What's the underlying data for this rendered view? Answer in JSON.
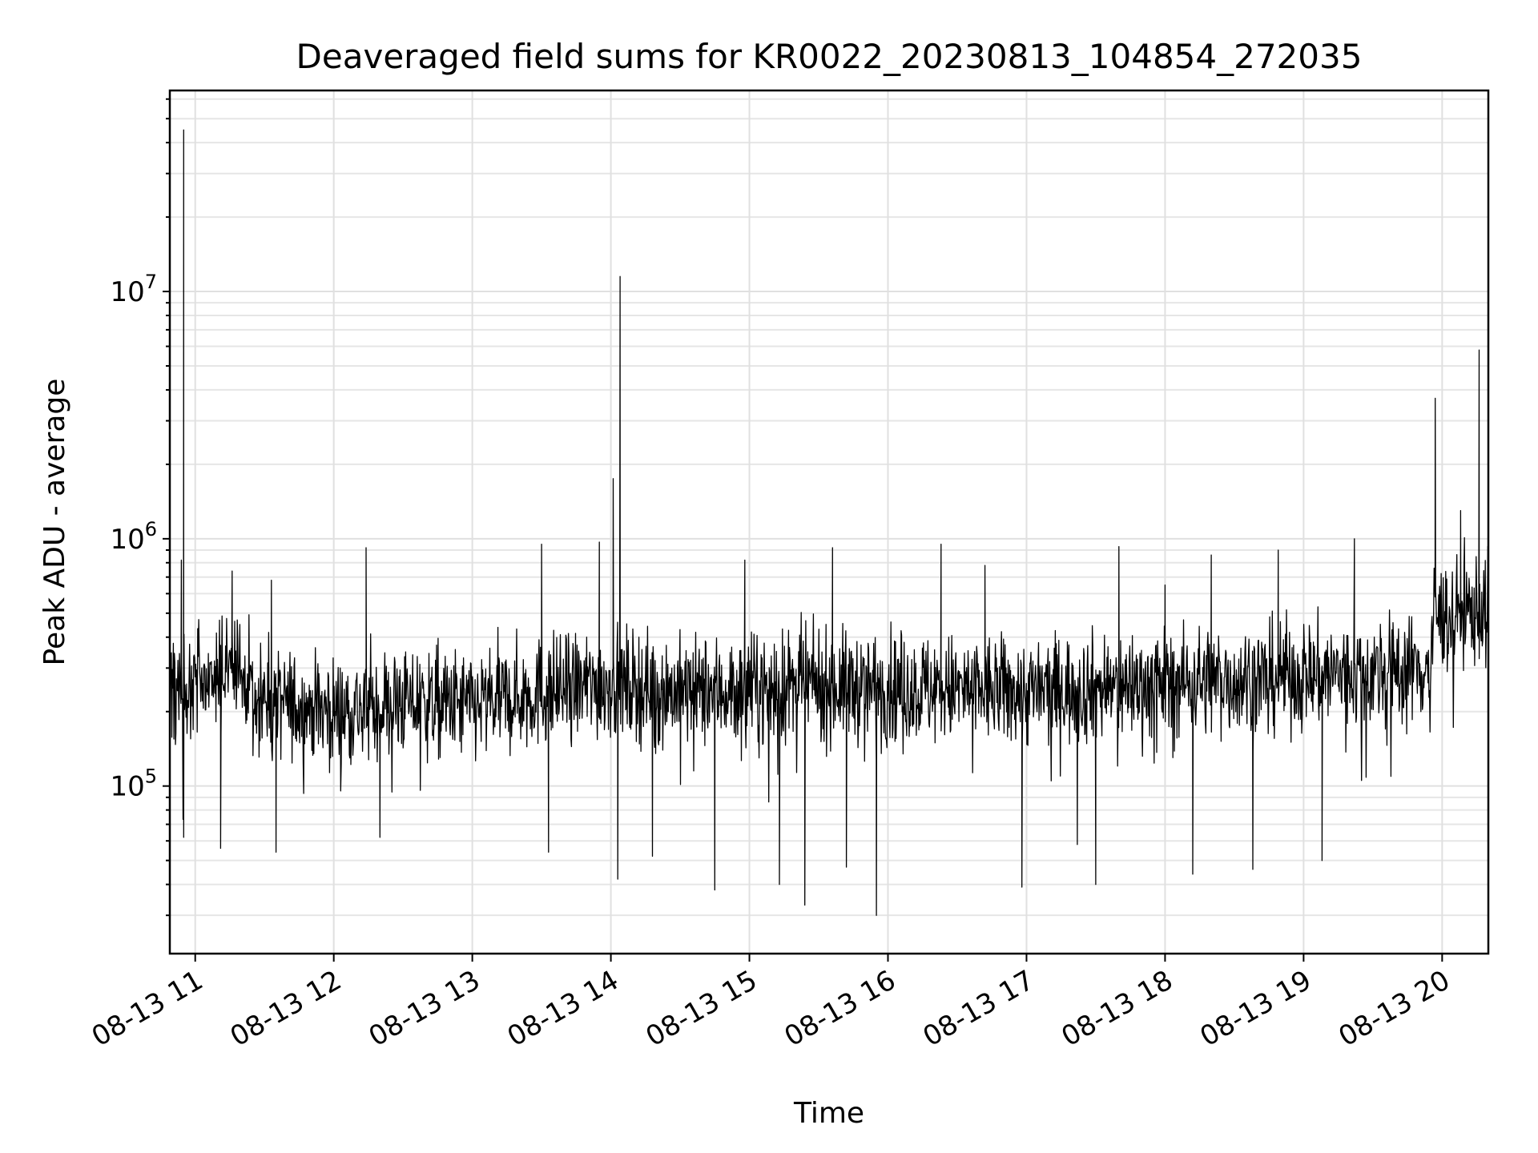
{
  "chart_data": {
    "type": "line",
    "title": "Deaveraged field sums for KR0022_20230813_104854_272035",
    "xlabel": "Time",
    "ylabel": "Peak ADU - average",
    "yscale": "log",
    "grid": true,
    "legend": "none",
    "line_color": "#000000",
    "xlim": [
      "2023-08-13 10:49",
      "2023-08-13 20:20"
    ],
    "ylim": [
      21000,
      65000000
    ],
    "x_ticks": [
      {
        "value": "2023-08-13 11:00",
        "label": "08-13 11"
      },
      {
        "value": "2023-08-13 12:00",
        "label": "08-13 12"
      },
      {
        "value": "2023-08-13 13:00",
        "label": "08-13 13"
      },
      {
        "value": "2023-08-13 14:00",
        "label": "08-13 14"
      },
      {
        "value": "2023-08-13 15:00",
        "label": "08-13 15"
      },
      {
        "value": "2023-08-13 16:00",
        "label": "08-13 16"
      },
      {
        "value": "2023-08-13 17:00",
        "label": "08-13 17"
      },
      {
        "value": "2023-08-13 18:00",
        "label": "08-13 18"
      },
      {
        "value": "2023-08-13 19:00",
        "label": "08-13 19"
      },
      {
        "value": "2023-08-13 20:00",
        "label": "08-13 20"
      }
    ],
    "y_ticks": [
      {
        "value": 100000,
        "base": "10",
        "exp": "5"
      },
      {
        "value": 1000000,
        "base": "10",
        "exp": "6"
      },
      {
        "value": 10000000,
        "base": "10",
        "exp": "7"
      }
    ],
    "series": [
      {
        "baseline": [
          {
            "x": "2023-08-13 10:49",
            "y": 260000
          },
          {
            "x": "2023-08-13 11:00",
            "y": 270000
          },
          {
            "x": "2023-08-13 11:15",
            "y": 300000
          },
          {
            "x": "2023-08-13 11:30",
            "y": 220000
          },
          {
            "x": "2023-08-13 12:00",
            "y": 200000
          },
          {
            "x": "2023-08-13 12:30",
            "y": 220000
          },
          {
            "x": "2023-08-13 13:00",
            "y": 210000
          },
          {
            "x": "2023-08-13 13:30",
            "y": 240000
          },
          {
            "x": "2023-08-13 14:00",
            "y": 260000
          },
          {
            "x": "2023-08-13 14:30",
            "y": 240000
          },
          {
            "x": "2023-08-13 15:00",
            "y": 245000
          },
          {
            "x": "2023-08-13 15:30",
            "y": 255000
          },
          {
            "x": "2023-08-13 16:00",
            "y": 250000
          },
          {
            "x": "2023-08-13 16:30",
            "y": 245000
          },
          {
            "x": "2023-08-13 17:00",
            "y": 240000
          },
          {
            "x": "2023-08-13 17:30",
            "y": 250000
          },
          {
            "x": "2023-08-13 18:00",
            "y": 260000
          },
          {
            "x": "2023-08-13 18:30",
            "y": 270000
          },
          {
            "x": "2023-08-13 19:00",
            "y": 280000
          },
          {
            "x": "2023-08-13 19:30",
            "y": 290000
          },
          {
            "x": "2023-08-13 19:55",
            "y": 300000
          },
          {
            "x": "2023-08-13 19:56",
            "y": 480000
          },
          {
            "x": "2023-08-13 20:20",
            "y": 520000
          }
        ],
        "spikes": [
          {
            "x": "2023-08-13 10:55",
            "y": 45000000
          },
          {
            "x": "2023-08-13 10:54",
            "y": 820000
          },
          {
            "x": "2023-08-13 10:55",
            "y": 62000
          },
          {
            "x": "2023-08-13 11:11",
            "y": 56000
          },
          {
            "x": "2023-08-13 11:16",
            "y": 740000
          },
          {
            "x": "2023-08-13 11:33",
            "y": 680000
          },
          {
            "x": "2023-08-13 11:35",
            "y": 54000
          },
          {
            "x": "2023-08-13 12:14",
            "y": 920000
          },
          {
            "x": "2023-08-13 12:20",
            "y": 62000
          },
          {
            "x": "2023-08-13 13:30",
            "y": 950000
          },
          {
            "x": "2023-08-13 13:33",
            "y": 54000
          },
          {
            "x": "2023-08-13 13:55",
            "y": 970000
          },
          {
            "x": "2023-08-13 14:01",
            "y": 1750000
          },
          {
            "x": "2023-08-13 14:04",
            "y": 11500000
          },
          {
            "x": "2023-08-13 14:03",
            "y": 42000
          },
          {
            "x": "2023-08-13 14:18",
            "y": 52000
          },
          {
            "x": "2023-08-13 14:45",
            "y": 38000
          },
          {
            "x": "2023-08-13 14:58",
            "y": 820000
          },
          {
            "x": "2023-08-13 15:13",
            "y": 40000
          },
          {
            "x": "2023-08-13 15:24",
            "y": 33000
          },
          {
            "x": "2023-08-13 15:36",
            "y": 920000
          },
          {
            "x": "2023-08-13 15:42",
            "y": 47000
          },
          {
            "x": "2023-08-13 15:55",
            "y": 30000
          },
          {
            "x": "2023-08-13 16:23",
            "y": 950000
          },
          {
            "x": "2023-08-13 16:42",
            "y": 780000
          },
          {
            "x": "2023-08-13 16:58",
            "y": 39000
          },
          {
            "x": "2023-08-13 17:22",
            "y": 58000
          },
          {
            "x": "2023-08-13 17:30",
            "y": 40000
          },
          {
            "x": "2023-08-13 17:40",
            "y": 930000
          },
          {
            "x": "2023-08-13 18:00",
            "y": 650000
          },
          {
            "x": "2023-08-13 18:12",
            "y": 44000
          },
          {
            "x": "2023-08-13 18:20",
            "y": 860000
          },
          {
            "x": "2023-08-13 18:38",
            "y": 46000
          },
          {
            "x": "2023-08-13 18:49",
            "y": 900000
          },
          {
            "x": "2023-08-13 19:08",
            "y": 50000
          },
          {
            "x": "2023-08-13 19:22",
            "y": 1000000
          },
          {
            "x": "2023-08-13 19:57",
            "y": 3700000
          },
          {
            "x": "2023-08-13 20:08",
            "y": 1300000
          },
          {
            "x": "2023-08-13 20:16",
            "y": 5800000
          }
        ]
      }
    ]
  }
}
